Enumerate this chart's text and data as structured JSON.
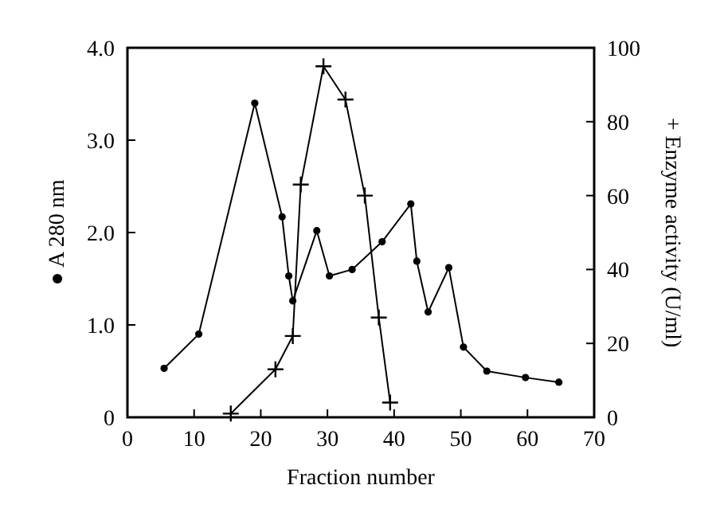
{
  "chart_data": {
    "type": "line",
    "xlabel": "Fraction number",
    "ylabel": "● A 280 nm",
    "y2label": "+ Enzyme activity (U/ml)",
    "xlim": [
      0,
      70
    ],
    "xticks": [
      0,
      10,
      20,
      30,
      40,
      50,
      60,
      70
    ],
    "ylim": [
      0,
      4
    ],
    "yticks": [
      0,
      {
        "value": 1,
        "label": "1.0"
      },
      {
        "value": 2,
        "label": "2.0"
      },
      {
        "value": 3,
        "label": "3.0"
      },
      {
        "value": 4,
        "label": "4.0"
      }
    ],
    "y2lim": [
      0,
      100
    ],
    "y2ticks": [
      0,
      20,
      40,
      60,
      80,
      100
    ],
    "grid": false,
    "series": [
      {
        "color": "#000000",
        "marker": "circle",
        "x": [
          5.5,
          10.7,
          19.1,
          23.2,
          24.2,
          24.8,
          28.4,
          30.3,
          33.7,
          38.2,
          42.5,
          43.4,
          45.1,
          48.2,
          50.4,
          53.9,
          59.7,
          64.7
        ],
        "values": [
          0.53,
          0.9,
          3.4,
          2.17,
          1.53,
          1.26,
          2.02,
          1.53,
          1.6,
          1.9,
          2.31,
          1.69,
          1.14,
          1.62,
          0.76,
          0.5,
          0.43,
          0.38
        ]
      },
      {
        "color": "#000000",
        "marker": "cross",
        "axis": "y2",
        "x": [
          15.5,
          22.2,
          24.8,
          26,
          29.4,
          32.7,
          35.6,
          37.7,
          39.4
        ],
        "values": [
          1,
          13,
          22,
          63,
          95,
          86,
          60,
          27,
          4
        ]
      }
    ]
  }
}
